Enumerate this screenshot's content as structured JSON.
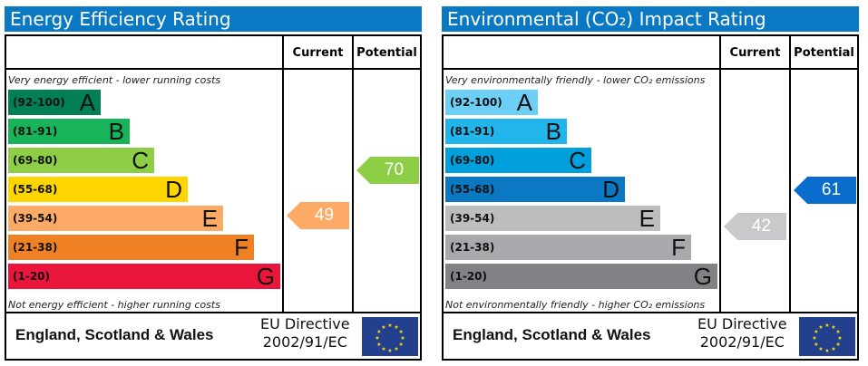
{
  "panels": [
    {
      "title": "Energy Efficiency Rating",
      "current_label": "Current",
      "potential_label": "Potential",
      "top_note": "Very energy efficient - lower running costs",
      "bottom_note": "Not energy efficient - higher running costs",
      "bands": [
        {
          "range": "(92-100)",
          "letter": "A",
          "color": "#008054"
        },
        {
          "range": "(81-91)",
          "letter": "B",
          "color": "#19b459"
        },
        {
          "range": "(69-80)",
          "letter": "C",
          "color": "#8dce46"
        },
        {
          "range": "(55-68)",
          "letter": "D",
          "color": "#ffd500"
        },
        {
          "range": "(39-54)",
          "letter": "E",
          "color": "#fcaa65"
        },
        {
          "range": "(21-38)",
          "letter": "F",
          "color": "#ef8023"
        },
        {
          "range": "(1-20)",
          "letter": "G",
          "color": "#e9153b"
        }
      ],
      "current": {
        "value": "49",
        "color": "#fcaa65"
      },
      "potential": {
        "value": "70",
        "color": "#8dce46"
      },
      "region": "England, Scotland & Wales",
      "directive_line1": "EU Directive",
      "directive_line2": "2002/91/EC"
    },
    {
      "title": "Environmental (CO₂) Impact Rating",
      "current_label": "Current",
      "potential_label": "Potential",
      "top_note": "Very environmentally friendly - lower CO₂ emissions",
      "bottom_note": "Not environmentally friendly - higher CO₂ emissions",
      "bands": [
        {
          "range": "(92-100)",
          "letter": "A",
          "color": "#6dcff6"
        },
        {
          "range": "(81-91)",
          "letter": "B",
          "color": "#22b5eb"
        },
        {
          "range": "(69-80)",
          "letter": "C",
          "color": "#00a0dc"
        },
        {
          "range": "(55-68)",
          "letter": "D",
          "color": "#0a78c2"
        },
        {
          "range": "(39-54)",
          "letter": "E",
          "color": "#bbbdbf"
        },
        {
          "range": "(21-38)",
          "letter": "F",
          "color": "#a7a9ac"
        },
        {
          "range": "(1-20)",
          "letter": "G",
          "color": "#808285"
        }
      ],
      "current": {
        "value": "42",
        "color": "#c8c9cb"
      },
      "potential": {
        "value": "61",
        "color": "#0a6ccc"
      },
      "region": "England, Scotland & Wales",
      "directive_line1": "EU Directive",
      "directive_line2": "2002/91/EC"
    }
  ]
}
